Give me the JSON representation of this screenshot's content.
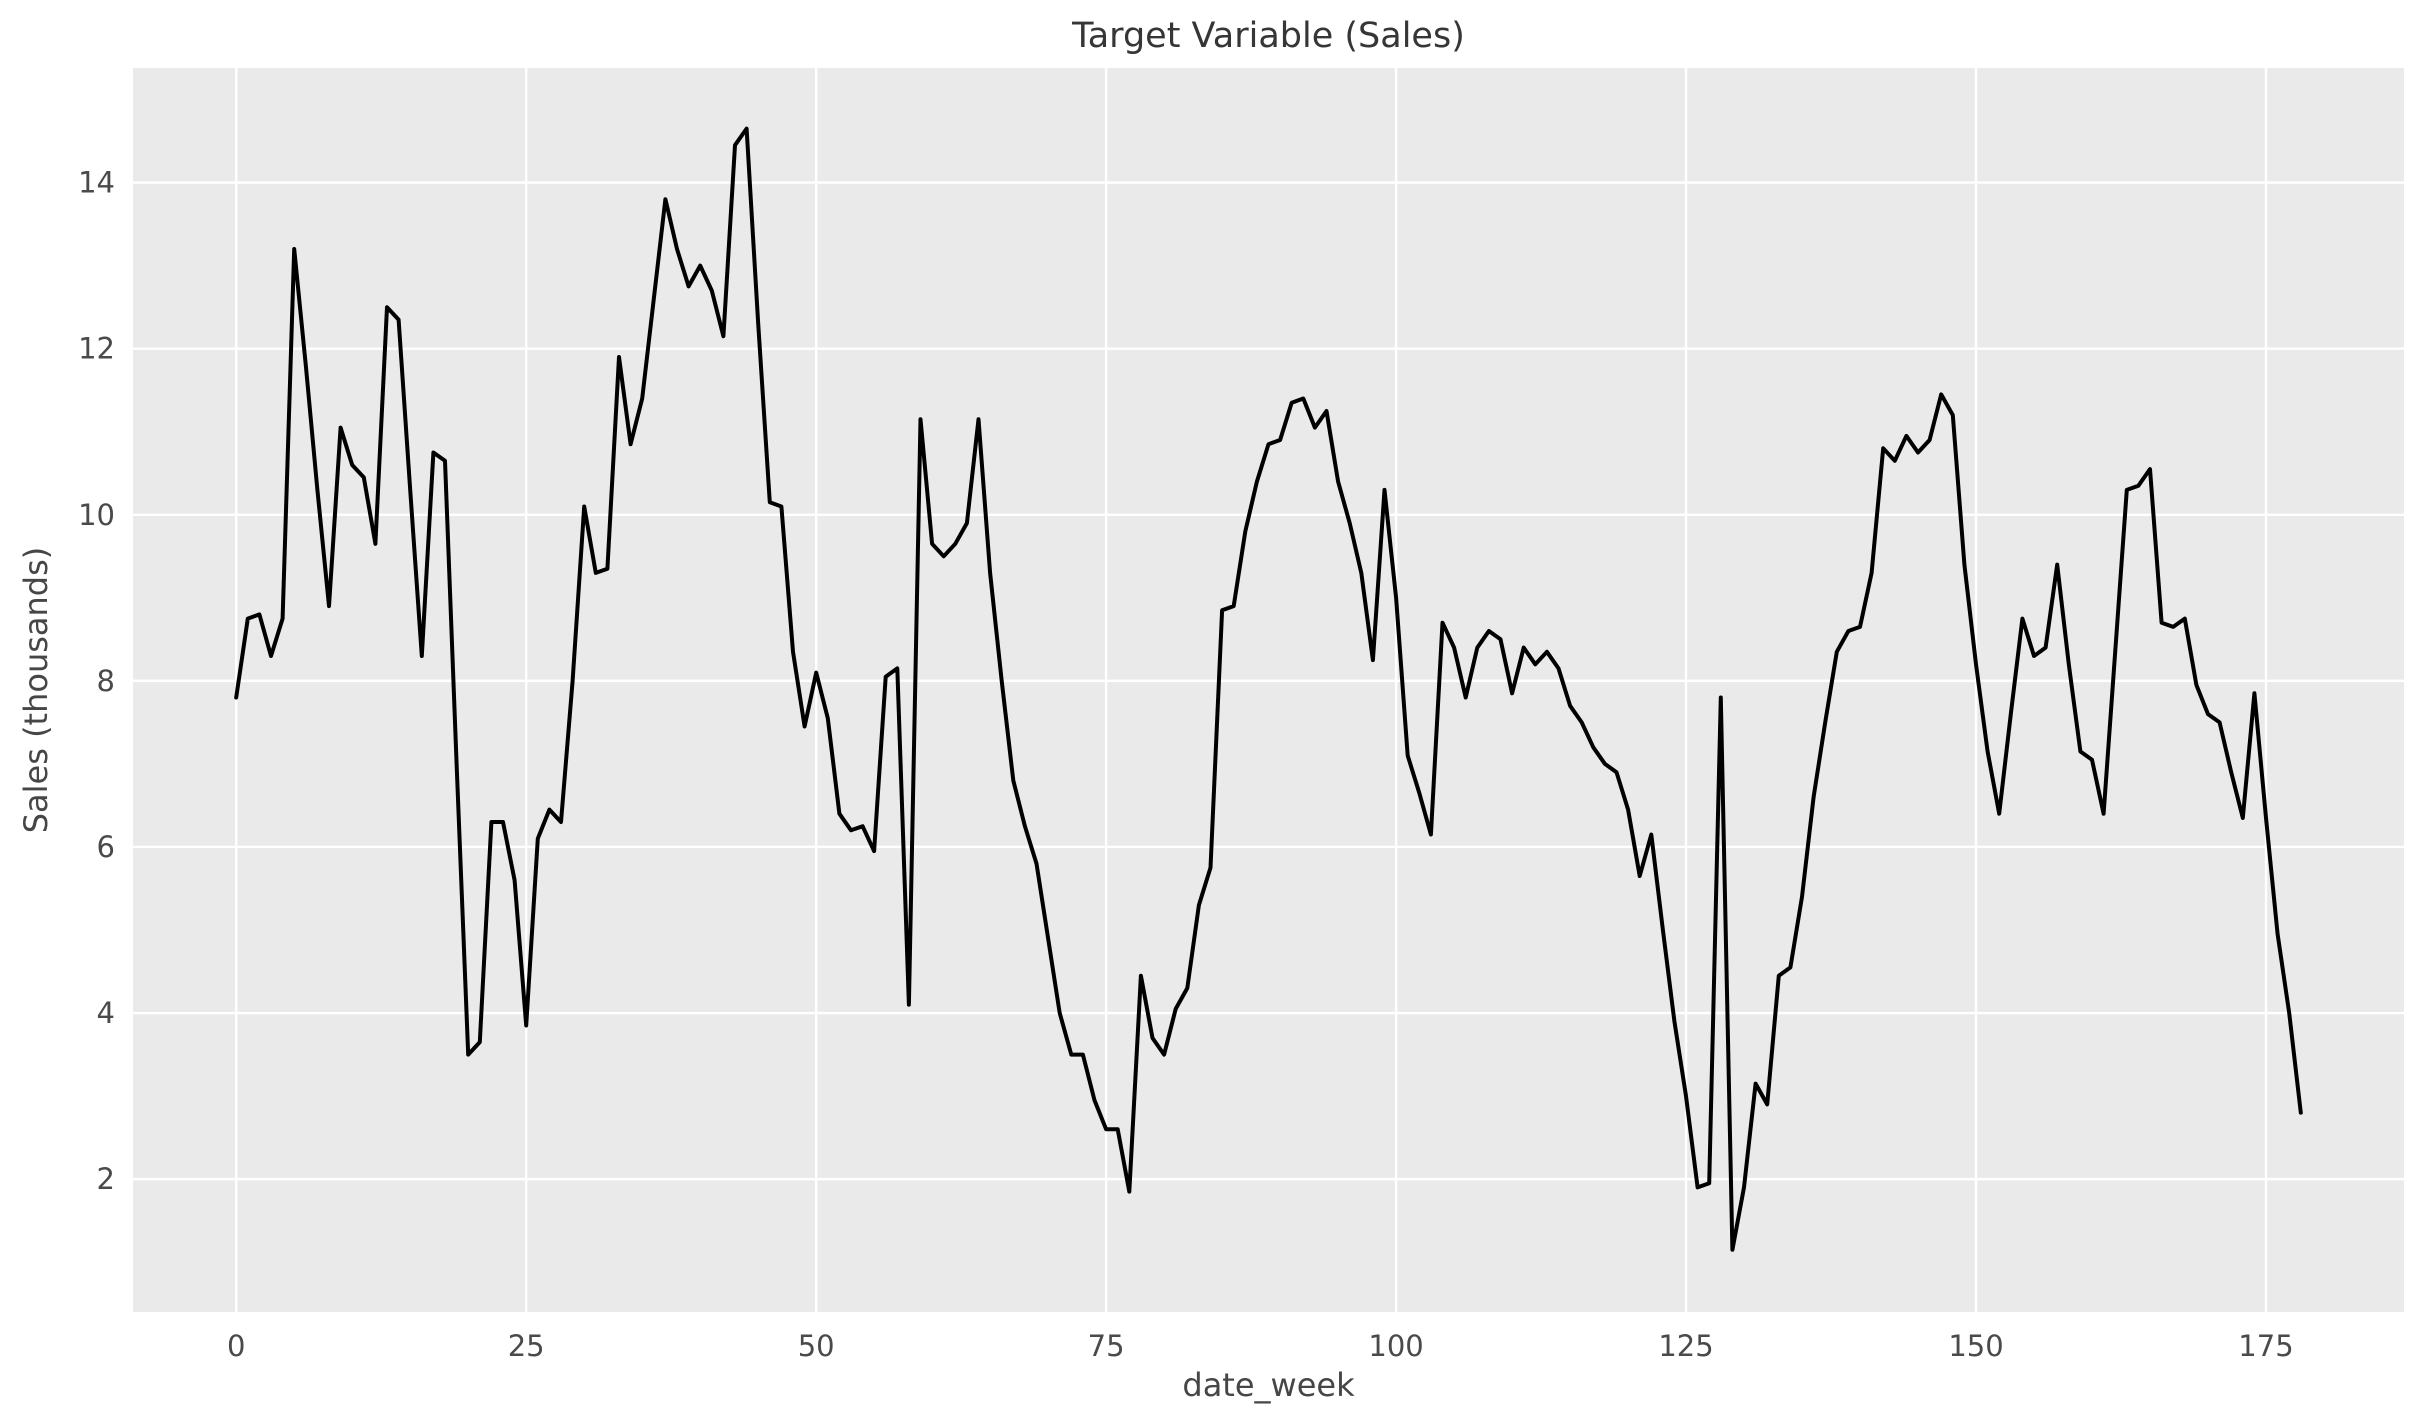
{
  "chart_data": {
    "type": "line",
    "title": "Target Variable (Sales)",
    "xlabel": "date_week",
    "ylabel": "Sales (thousands)",
    "xticks": [
      0,
      25,
      50,
      75,
      100,
      125,
      150,
      175
    ],
    "yticks": [
      2,
      4,
      6,
      8,
      10,
      12,
      14
    ],
    "xlim": [
      -8.9,
      186.9
    ],
    "ylim": [
      0.4,
      15.38
    ],
    "grid": true,
    "legend": "none",
    "line_color": "#000000",
    "panel_color": "#eaeaea",
    "grid_color": "#ffffff",
    "x": [
      0,
      1,
      2,
      3,
      4,
      5,
      6,
      7,
      8,
      9,
      10,
      11,
      12,
      13,
      14,
      15,
      16,
      17,
      18,
      19,
      20,
      21,
      22,
      23,
      24,
      25,
      26,
      27,
      28,
      29,
      30,
      31,
      32,
      33,
      34,
      35,
      36,
      37,
      38,
      39,
      40,
      41,
      42,
      43,
      44,
      45,
      46,
      47,
      48,
      49,
      50,
      51,
      52,
      53,
      54,
      55,
      56,
      57,
      58,
      59,
      60,
      61,
      62,
      63,
      64,
      65,
      66,
      67,
      68,
      69,
      70,
      71,
      72,
      73,
      74,
      75,
      76,
      77,
      78,
      79,
      80,
      81,
      82,
      83,
      84,
      85,
      86,
      87,
      88,
      89,
      90,
      91,
      92,
      93,
      94,
      95,
      96,
      97,
      98,
      99,
      100,
      101,
      102,
      103,
      104,
      105,
      106,
      107,
      108,
      109,
      110,
      111,
      112,
      113,
      114,
      115,
      116,
      117,
      118,
      119,
      120,
      121,
      122,
      123,
      124,
      125,
      126,
      127,
      128,
      129,
      130,
      131,
      132,
      133,
      134,
      135,
      136,
      137,
      138,
      139,
      140,
      141,
      142,
      143,
      144,
      145,
      146,
      147,
      148,
      149,
      150,
      151,
      152,
      153,
      154,
      155,
      156,
      157,
      158,
      159,
      160,
      161,
      162,
      163,
      164,
      165,
      166,
      167,
      168,
      169,
      170,
      171,
      172,
      173,
      174,
      175,
      176,
      177,
      178
    ],
    "series": [
      {
        "name": "Sales",
        "values": [
          7.8,
          8.75,
          8.8,
          8.3,
          8.75,
          13.2,
          11.8,
          10.3,
          8.9,
          11.05,
          10.6,
          10.45,
          9.65,
          12.5,
          12.35,
          10.3,
          8.3,
          10.75,
          10.65,
          7.0,
          3.5,
          3.65,
          6.3,
          6.3,
          5.6,
          3.85,
          6.1,
          6.45,
          6.3,
          8.0,
          10.1,
          9.3,
          9.35,
          11.9,
          10.85,
          11.4,
          12.6,
          13.8,
          13.2,
          12.75,
          13.0,
          12.7,
          12.15,
          14.45,
          14.65,
          12.3,
          10.15,
          10.1,
          8.35,
          7.45,
          8.1,
          7.55,
          6.4,
          6.2,
          6.25,
          5.95,
          8.05,
          8.15,
          4.1,
          11.15,
          9.65,
          9.5,
          9.65,
          9.9,
          11.15,
          9.3,
          8.0,
          6.8,
          6.25,
          5.8,
          4.9,
          4.0,
          3.5,
          3.5,
          2.95,
          2.6,
          2.6,
          1.85,
          4.45,
          3.7,
          3.5,
          4.05,
          4.3,
          5.3,
          5.75,
          8.85,
          8.9,
          9.8,
          10.4,
          10.85,
          10.9,
          11.35,
          11.4,
          11.05,
          11.25,
          10.4,
          9.9,
          9.3,
          8.25,
          10.3,
          9.0,
          7.1,
          6.65,
          6.15,
          8.7,
          8.4,
          7.8,
          8.4,
          8.6,
          8.5,
          7.85,
          8.4,
          8.2,
          8.35,
          8.15,
          7.7,
          7.5,
          7.2,
          7.0,
          6.9,
          6.45,
          5.65,
          6.15,
          5.0,
          3.9,
          3.0,
          1.9,
          1.95,
          7.8,
          1.15,
          1.9,
          3.15,
          2.9,
          4.45,
          4.55,
          5.4,
          6.6,
          7.5,
          8.35,
          8.6,
          8.65,
          9.3,
          10.8,
          10.65,
          10.95,
          10.75,
          10.9,
          11.45,
          11.2,
          9.4,
          8.2,
          7.15,
          6.4,
          7.6,
          8.75,
          8.3,
          8.4,
          9.4,
          8.2,
          7.15,
          7.05,
          6.4,
          8.35,
          10.3,
          10.35,
          10.55,
          8.7,
          8.65,
          8.75,
          7.95,
          7.6,
          7.5,
          6.9,
          6.35,
          7.85,
          6.35,
          4.95,
          4.0,
          2.8
        ]
      }
    ]
  }
}
